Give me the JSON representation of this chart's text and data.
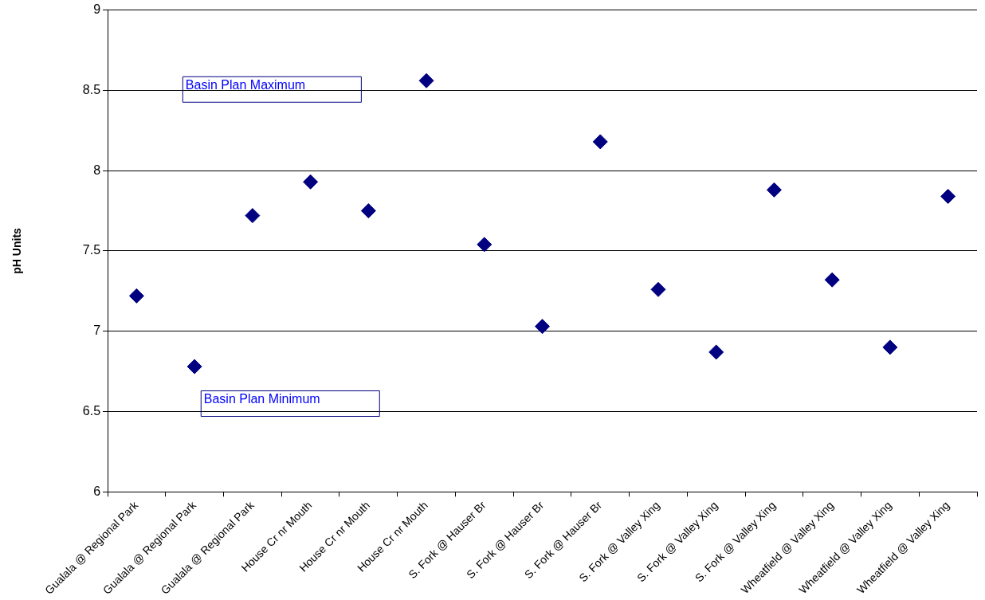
{
  "chart_data": {
    "type": "scatter",
    "ylabel": "pH Units",
    "categories": [
      "Gualala @ Regional Park",
      "Gualala @ Regional Park",
      "Gualala @ Regional Park",
      "House Cr nr Mouth",
      "House Cr nr Mouth",
      "House Cr nr Mouth",
      "S. Fork @ Hauser Br",
      "S. Fork @ Hauser Br",
      "S. Fork @ Hauser Br",
      "S. Fork @ Valley Xing",
      "S. Fork @ Valley Xing",
      "S. Fork @ Valley Xing",
      "Wheatfield @ Valley Xing",
      "Wheatfield @ Valley Xing",
      "Wheatfield @ Valley Xing"
    ],
    "series": [
      {
        "color": "#000080",
        "values": [
          7.22,
          6.78,
          7.72,
          7.93,
          7.75,
          8.56,
          7.54,
          7.03,
          8.18,
          7.26,
          6.87,
          7.88,
          7.32,
          6.9,
          7.84
        ]
      }
    ],
    "ylim": [
      6,
      9
    ],
    "yticks": [
      6,
      6.5,
      7,
      7.5,
      8,
      8.5,
      9
    ],
    "grid": "y",
    "legend": false,
    "marker": "diamond",
    "annotations": [
      "Basin Plan Maximum",
      "Basin Plan Minimum"
    ]
  }
}
